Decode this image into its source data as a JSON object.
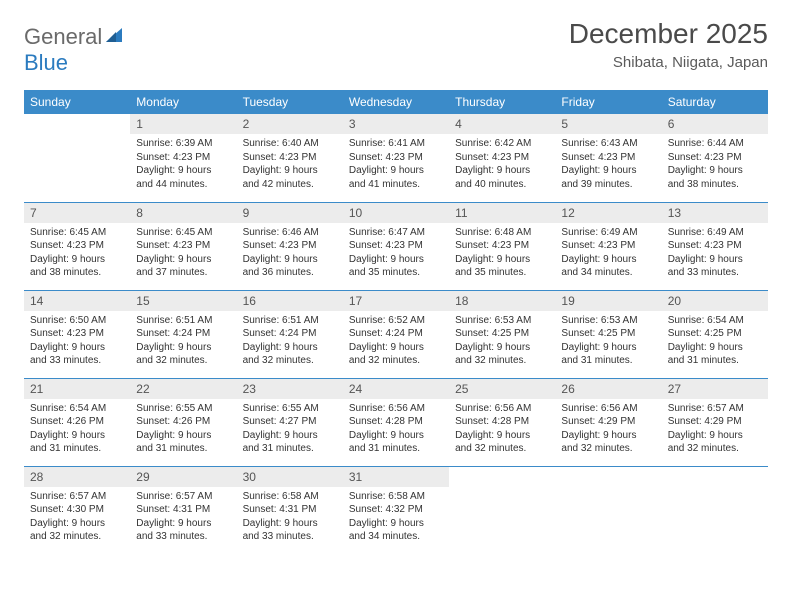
{
  "logo": {
    "word1": "General",
    "word2": "Blue"
  },
  "title": "December 2025",
  "location": "Shibata, Niigata, Japan",
  "colors": {
    "header_bg": "#3b8bc9",
    "header_text": "#ffffff",
    "daynum_bg": "#ececec",
    "rule": "#3b8bc9",
    "logo_gray": "#6a6a6a",
    "logo_blue": "#2b7bbf"
  },
  "fonts": {
    "title_pt": 28,
    "location_pt": 15,
    "th_pt": 12,
    "daynum_pt": 12,
    "body_pt": 10
  },
  "day_headers": [
    "Sunday",
    "Monday",
    "Tuesday",
    "Wednesday",
    "Thursday",
    "Friday",
    "Saturday"
  ],
  "weeks": [
    [
      null,
      {
        "n": "1",
        "sunrise": "6:39 AM",
        "sunset": "4:23 PM",
        "daylight": "9 hours and 44 minutes."
      },
      {
        "n": "2",
        "sunrise": "6:40 AM",
        "sunset": "4:23 PM",
        "daylight": "9 hours and 42 minutes."
      },
      {
        "n": "3",
        "sunrise": "6:41 AM",
        "sunset": "4:23 PM",
        "daylight": "9 hours and 41 minutes."
      },
      {
        "n": "4",
        "sunrise": "6:42 AM",
        "sunset": "4:23 PM",
        "daylight": "9 hours and 40 minutes."
      },
      {
        "n": "5",
        "sunrise": "6:43 AM",
        "sunset": "4:23 PM",
        "daylight": "9 hours and 39 minutes."
      },
      {
        "n": "6",
        "sunrise": "6:44 AM",
        "sunset": "4:23 PM",
        "daylight": "9 hours and 38 minutes."
      }
    ],
    [
      {
        "n": "7",
        "sunrise": "6:45 AM",
        "sunset": "4:23 PM",
        "daylight": "9 hours and 38 minutes."
      },
      {
        "n": "8",
        "sunrise": "6:45 AM",
        "sunset": "4:23 PM",
        "daylight": "9 hours and 37 minutes."
      },
      {
        "n": "9",
        "sunrise": "6:46 AM",
        "sunset": "4:23 PM",
        "daylight": "9 hours and 36 minutes."
      },
      {
        "n": "10",
        "sunrise": "6:47 AM",
        "sunset": "4:23 PM",
        "daylight": "9 hours and 35 minutes."
      },
      {
        "n": "11",
        "sunrise": "6:48 AM",
        "sunset": "4:23 PM",
        "daylight": "9 hours and 35 minutes."
      },
      {
        "n": "12",
        "sunrise": "6:49 AM",
        "sunset": "4:23 PM",
        "daylight": "9 hours and 34 minutes."
      },
      {
        "n": "13",
        "sunrise": "6:49 AM",
        "sunset": "4:23 PM",
        "daylight": "9 hours and 33 minutes."
      }
    ],
    [
      {
        "n": "14",
        "sunrise": "6:50 AM",
        "sunset": "4:23 PM",
        "daylight": "9 hours and 33 minutes."
      },
      {
        "n": "15",
        "sunrise": "6:51 AM",
        "sunset": "4:24 PM",
        "daylight": "9 hours and 32 minutes."
      },
      {
        "n": "16",
        "sunrise": "6:51 AM",
        "sunset": "4:24 PM",
        "daylight": "9 hours and 32 minutes."
      },
      {
        "n": "17",
        "sunrise": "6:52 AM",
        "sunset": "4:24 PM",
        "daylight": "9 hours and 32 minutes."
      },
      {
        "n": "18",
        "sunrise": "6:53 AM",
        "sunset": "4:25 PM",
        "daylight": "9 hours and 32 minutes."
      },
      {
        "n": "19",
        "sunrise": "6:53 AM",
        "sunset": "4:25 PM",
        "daylight": "9 hours and 31 minutes."
      },
      {
        "n": "20",
        "sunrise": "6:54 AM",
        "sunset": "4:25 PM",
        "daylight": "9 hours and 31 minutes."
      }
    ],
    [
      {
        "n": "21",
        "sunrise": "6:54 AM",
        "sunset": "4:26 PM",
        "daylight": "9 hours and 31 minutes."
      },
      {
        "n": "22",
        "sunrise": "6:55 AM",
        "sunset": "4:26 PM",
        "daylight": "9 hours and 31 minutes."
      },
      {
        "n": "23",
        "sunrise": "6:55 AM",
        "sunset": "4:27 PM",
        "daylight": "9 hours and 31 minutes."
      },
      {
        "n": "24",
        "sunrise": "6:56 AM",
        "sunset": "4:28 PM",
        "daylight": "9 hours and 31 minutes."
      },
      {
        "n": "25",
        "sunrise": "6:56 AM",
        "sunset": "4:28 PM",
        "daylight": "9 hours and 32 minutes."
      },
      {
        "n": "26",
        "sunrise": "6:56 AM",
        "sunset": "4:29 PM",
        "daylight": "9 hours and 32 minutes."
      },
      {
        "n": "27",
        "sunrise": "6:57 AM",
        "sunset": "4:29 PM",
        "daylight": "9 hours and 32 minutes."
      }
    ],
    [
      {
        "n": "28",
        "sunrise": "6:57 AM",
        "sunset": "4:30 PM",
        "daylight": "9 hours and 32 minutes."
      },
      {
        "n": "29",
        "sunrise": "6:57 AM",
        "sunset": "4:31 PM",
        "daylight": "9 hours and 33 minutes."
      },
      {
        "n": "30",
        "sunrise": "6:58 AM",
        "sunset": "4:31 PM",
        "daylight": "9 hours and 33 minutes."
      },
      {
        "n": "31",
        "sunrise": "6:58 AM",
        "sunset": "4:32 PM",
        "daylight": "9 hours and 34 minutes."
      },
      null,
      null,
      null
    ]
  ],
  "labels": {
    "sunrise": "Sunrise:",
    "sunset": "Sunset:",
    "daylight": "Daylight:"
  }
}
